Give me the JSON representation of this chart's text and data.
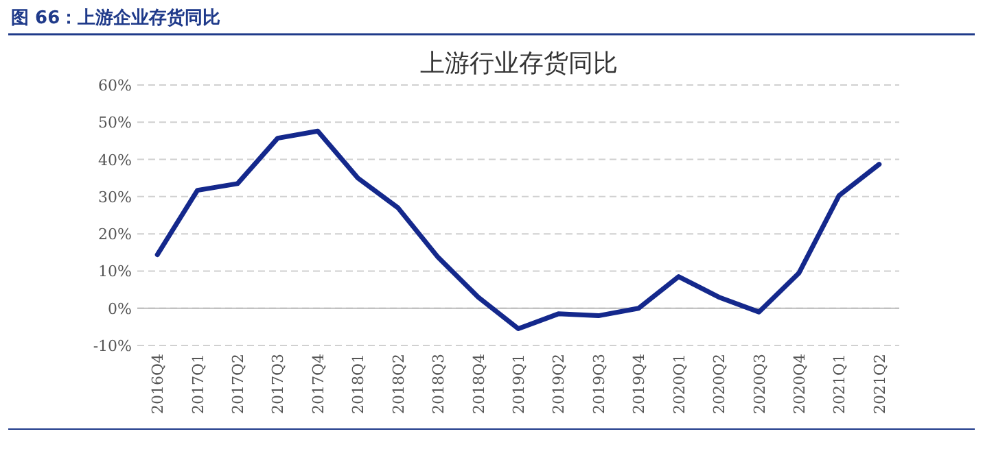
{
  "chart_data": {
    "type": "line",
    "title": "图 66：上游企业存货同比",
    "subtitle": "上游行业存货同比",
    "categories": [
      "2016Q4",
      "2017Q1",
      "2017Q2",
      "2017Q3",
      "2017Q4",
      "2018Q1",
      "2018Q2",
      "2018Q3",
      "2018Q4",
      "2019Q1",
      "2019Q2",
      "2019Q3",
      "2019Q4",
      "2020Q1",
      "2020Q2",
      "2020Q3",
      "2020Q4",
      "2021Q1",
      "2021Q2"
    ],
    "series": [
      {
        "color": "#14288c",
        "values": [
          14.4,
          31.7,
          33.5,
          45.7,
          47.6,
          35,
          27,
          13.7,
          3,
          -5.5,
          -1.5,
          -2,
          0,
          8.5,
          3,
          -1,
          9.5,
          30.3,
          38.7
        ]
      }
    ],
    "ylim": [
      -10,
      60
    ],
    "yticks": [
      {
        "value": -10,
        "label": "-10%"
      },
      {
        "value": 0,
        "label": "0%"
      },
      {
        "value": 10,
        "label": "10%"
      },
      {
        "value": 20,
        "label": "20%"
      },
      {
        "value": 30,
        "label": "30%"
      },
      {
        "value": 40,
        "label": "40%"
      },
      {
        "value": 50,
        "label": "50%"
      },
      {
        "value": 60,
        "label": "60%"
      }
    ],
    "grid": "y",
    "marker": "none",
    "line_style": "solid"
  }
}
